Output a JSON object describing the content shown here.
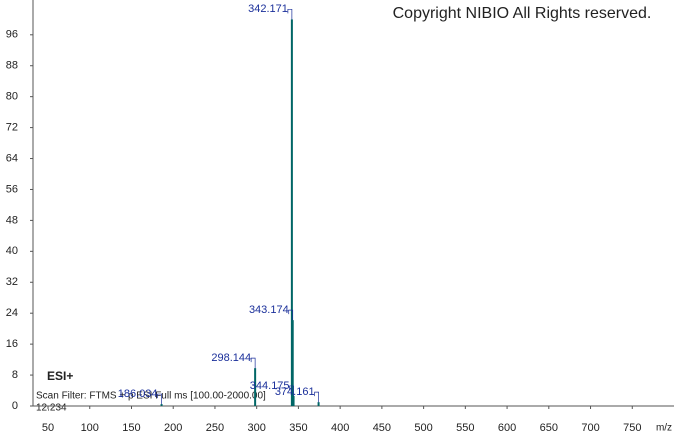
{
  "chart_data": {
    "type": "spectrum",
    "copyright": "Copyright NIBIO All Rights reserved.",
    "ionization": "ESI+",
    "scan_filter": "Scan Filter: FTMS + p ESI Full ms [100.00-2000.00]",
    "retention_time": "12.234",
    "x_label": "m/z",
    "x": [
      186.034,
      298.144,
      342.171,
      343.174,
      344.175,
      374.161
    ],
    "values": [
      0.5,
      9.8,
      100,
      22.2,
      2.6,
      1
    ],
    "color": "#006666",
    "label_color": "#1a2f9a",
    "xlim": [
      32,
      800
    ],
    "xticks": [
      50,
      100,
      150,
      200,
      250,
      300,
      350,
      400,
      450,
      500,
      550,
      600,
      650,
      700,
      750
    ],
    "ylim": [
      0,
      105
    ],
    "yticks": [
      0,
      8,
      16,
      24,
      32,
      40,
      48,
      56,
      64,
      72,
      80,
      88,
      96
    ]
  }
}
